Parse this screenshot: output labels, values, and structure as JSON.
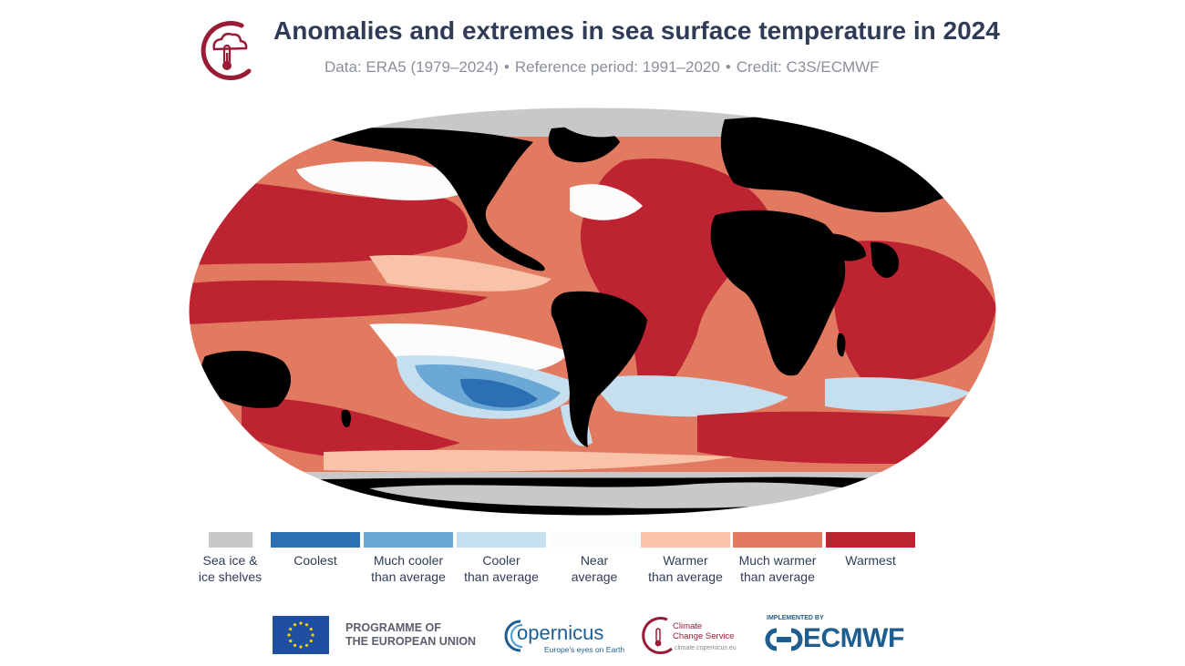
{
  "header": {
    "title": "Anomalies and extremes in sea surface temperature in 2024",
    "subtitle_parts": [
      "Data: ERA5 (1979–2024)",
      "Reference period: 1991–2020",
      "Credit: C3S/ECMWF"
    ],
    "separator": "•"
  },
  "map": {
    "projection": "Robinson",
    "colors": {
      "land": "#000000",
      "sea_ice": "#c8c8c8",
      "coolest": "#2c6fb3",
      "much_cooler": "#6ba8d6",
      "cooler": "#c5dfee",
      "near": "#fcfcfc",
      "warmer": "#f8c3a8",
      "much_warmer": "#e27a62",
      "warmest": "#bd2331"
    }
  },
  "legend": {
    "items": [
      {
        "line1": "Sea ice &",
        "line2": "ice shelves",
        "color": "#c8c8c8"
      },
      {
        "line1": "Coolest",
        "line2": "",
        "color": "#2c6fb3"
      },
      {
        "line1": "Much cooler",
        "line2": "than average",
        "color": "#6ba8d6"
      },
      {
        "line1": "Cooler",
        "line2": "than average",
        "color": "#c5dfee"
      },
      {
        "line1": "Near",
        "line2": "average",
        "color": "#fcfcfc"
      },
      {
        "line1": "Warmer",
        "line2": "than average",
        "color": "#f8c3a8"
      },
      {
        "line1": "Much warmer",
        "line2": "than average",
        "color": "#e27a62"
      },
      {
        "line1": "Warmest",
        "line2": "",
        "color": "#bd2331"
      }
    ]
  },
  "footer": {
    "eu_line1": "PROGRAMME OF",
    "eu_line2": "THE EUROPEAN UNION",
    "copernicus_name": "opernicus",
    "copernicus_tagline": "Europe's eyes on Earth",
    "c3s_line1": "Climate",
    "c3s_line2": "Change Service",
    "c3s_url": "climate.copernicus.eu",
    "ecmwf_implemented": "IMPLEMENTED BY",
    "ecmwf_name": "ECMWF"
  }
}
